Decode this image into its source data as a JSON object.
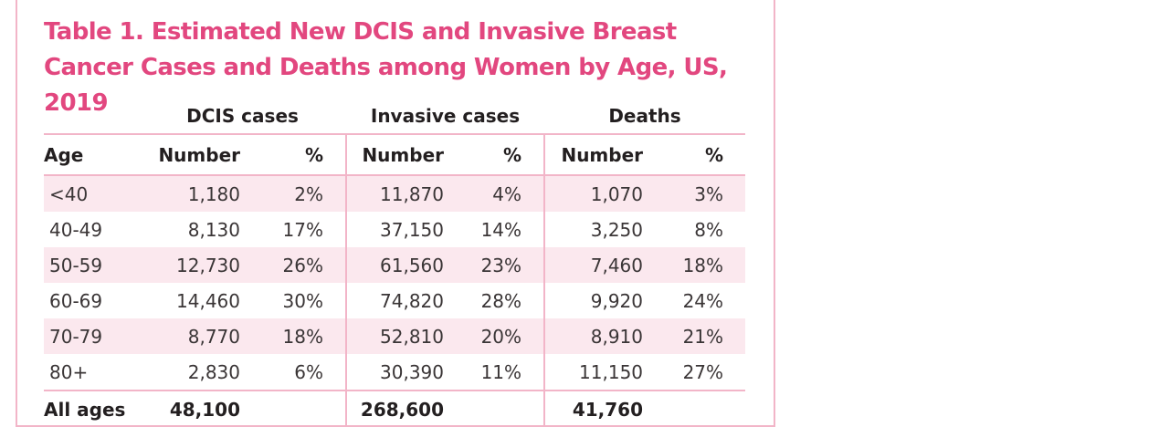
{
  "title": "Table 1. Estimated New DCIS and Invasive Breast Cancer Cases and Deaths among Women by Age, US, 2019",
  "groups": [
    "DCIS cases",
    "Invasive cases",
    "Deaths"
  ],
  "columns": {
    "age": "Age",
    "number": "Number",
    "percent": "%"
  },
  "rows": [
    {
      "age": "<40",
      "dcis_n": "1,180",
      "dcis_p": "2%",
      "inv_n": "11,870",
      "inv_p": "4%",
      "death_n": "1,070",
      "death_p": "3%"
    },
    {
      "age": "40-49",
      "dcis_n": "8,130",
      "dcis_p": "17%",
      "inv_n": "37,150",
      "inv_p": "14%",
      "death_n": "3,250",
      "death_p": "8%"
    },
    {
      "age": "50-59",
      "dcis_n": "12,730",
      "dcis_p": "26%",
      "inv_n": "61,560",
      "inv_p": "23%",
      "death_n": "7,460",
      "death_p": "18%"
    },
    {
      "age": "60-69",
      "dcis_n": "14,460",
      "dcis_p": "30%",
      "inv_n": "74,820",
      "inv_p": "28%",
      "death_n": "9,920",
      "death_p": "24%"
    },
    {
      "age": "70-79",
      "dcis_n": "8,770",
      "dcis_p": "18%",
      "inv_n": "52,810",
      "inv_p": "20%",
      "death_n": "8,910",
      "death_p": "21%"
    },
    {
      "age": "80+",
      "dcis_n": "2,830",
      "dcis_p": "6%",
      "inv_n": "30,390",
      "inv_p": "11%",
      "death_n": "11,150",
      "death_p": "27%"
    }
  ],
  "total": {
    "age": "All ages",
    "dcis_n": "48,100",
    "inv_n": "268,600",
    "death_n": "41,760"
  },
  "colors": {
    "accent": "#e2477f",
    "rule": "#f2b5c8",
    "shade": "#fbe8ee"
  }
}
